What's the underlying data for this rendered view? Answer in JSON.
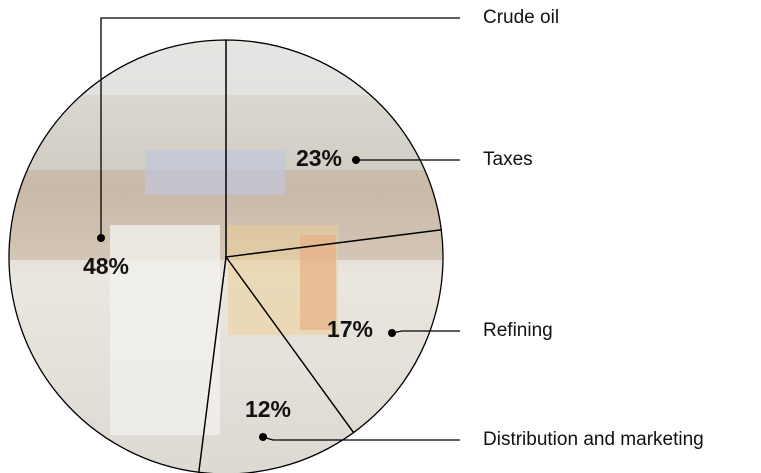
{
  "chart_data": {
    "type": "pie",
    "categories": [
      "Taxes",
      "Refining",
      "Distribution and marketing",
      "Crude oil"
    ],
    "values": [
      23,
      17,
      12,
      48
    ],
    "value_labels": [
      "23%",
      "17%",
      "12%",
      "48%"
    ]
  }
}
